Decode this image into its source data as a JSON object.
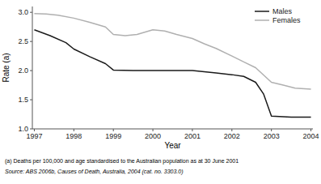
{
  "chart_data": {
    "type": "line",
    "xlabel": "Year",
    "ylabel": "Rate (a)",
    "xlim": [
      1996.95,
      2004.05
    ],
    "xticks": [
      1997,
      1998,
      1999,
      2000,
      2001,
      2002,
      2003,
      2004
    ],
    "ylim": [
      1.0,
      3.1
    ],
    "yticks": [
      {
        "value": 1.0,
        "label": "1.0"
      },
      {
        "value": 1.5,
        "label": "1.5"
      },
      {
        "value": 2.0,
        "label": "2.0"
      },
      {
        "value": 2.5,
        "label": "2.5"
      },
      {
        "value": 3.0,
        "label": "3.0"
      }
    ],
    "grid": false,
    "legend": "upper right",
    "series": [
      {
        "name": "Males",
        "color": "#1a1a1a",
        "x": [
          1997,
          1997.4,
          1997.8,
          1998,
          1998.4,
          1998.8,
          1999,
          1999.5,
          2000,
          2000.5,
          2001,
          2001.3,
          2001.6,
          2002,
          2002.3,
          2002.6,
          2002.8,
          2003,
          2003.5,
          2004
        ],
        "values": [
          2.7,
          2.6,
          2.48,
          2.37,
          2.24,
          2.12,
          2.01,
          2.0,
          2.0,
          2.0,
          2.0,
          1.98,
          1.96,
          1.93,
          1.9,
          1.8,
          1.6,
          1.22,
          1.2,
          1.2
        ]
      },
      {
        "name": "Females",
        "color": "#b0b0b0",
        "x": [
          1997,
          1997.3,
          1997.6,
          1998,
          1998.4,
          1998.8,
          1999,
          1999.3,
          1999.6,
          2000,
          2000.3,
          2000.6,
          2001,
          2001.3,
          2001.6,
          2002,
          2002.3,
          2002.6,
          2003,
          2003.3,
          2003.6,
          2004
        ],
        "values": [
          2.98,
          2.97,
          2.95,
          2.9,
          2.83,
          2.75,
          2.62,
          2.6,
          2.62,
          2.7,
          2.68,
          2.62,
          2.55,
          2.46,
          2.38,
          2.25,
          2.15,
          2.05,
          1.8,
          1.75,
          1.7,
          1.68
        ]
      }
    ],
    "annotations": [
      "(a) Deaths per 100,000 and age standardised to the Australian population as at 30 June 2001",
      "Source: ABS 2006b, Causes of Death, Australia, 2004 (cat. no. 3303.0)"
    ]
  }
}
